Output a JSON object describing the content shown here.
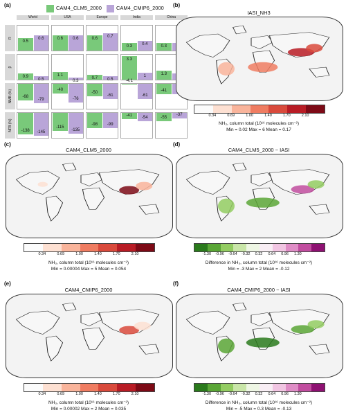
{
  "panels": {
    "a": {
      "label": "(a)"
    },
    "b": {
      "label": "(b)",
      "title": "IASI_NH3",
      "cb_label": "NH₃, column total (10¹⁶ molecules cm⁻²)",
      "stats": "Min = 0.02   Max = 6   Mean = 0.17"
    },
    "c": {
      "label": "(c)",
      "title": "CAM4_CLM5_2000",
      "cb_label": "NH₃, column total (10¹⁶ molecules cm⁻²)",
      "stats": "Min = 0.00004   Max = 5   Mean = 0.054"
    },
    "d": {
      "label": "(d)",
      "title": "CAM4_CLM5_2000 − IASI",
      "cb_label": "Difference in NH₃, column total (10¹⁶ molecules cm⁻²)",
      "stats": "Min = -3   Max = 2   Mean = -0.12"
    },
    "e": {
      "label": "(e)",
      "title": "CAM4_CMIP6_2000",
      "cb_label": "NH₃, column total (10¹⁶ molecules cm⁻²)",
      "stats": "Min = 0.00002   Max = 2   Mean = 0.035"
    },
    "f": {
      "label": "(f)",
      "title": "CAM4_CMIP6_2000 − IASI",
      "cb_label": "Difference in NH₃, column total (10¹⁶ molecules cm⁻²)",
      "stats": "Min = -5   Max = 0.3   Mean = -0.13"
    }
  },
  "colorbars": {
    "seq_ticks": [
      "0.34",
      "0.69",
      "1.00",
      "1.40",
      "1.70",
      "2.10"
    ],
    "seq_colors": [
      "#fbfbfb",
      "#fde0d2",
      "#f9b49b",
      "#ef7c61",
      "#d94a3c",
      "#b81c25",
      "#7d0a16"
    ],
    "div_ticks": [
      "-1.30",
      "-0.96",
      "-0.64",
      "-0.32",
      "0.32",
      "0.64",
      "0.96",
      "1.30"
    ],
    "div_colors": [
      "#2a7a1c",
      "#5aa636",
      "#93cc62",
      "#c9e6a8",
      "#eef6e4",
      "#f8eef4",
      "#f1c5e2",
      "#df8dc6",
      "#c14d9f",
      "#8e1172"
    ]
  },
  "chart_data": {
    "type": "bar",
    "legend": [
      "CAM4_CLM5_2000",
      "CAM4_CMIP6_2000"
    ],
    "colors": {
      "CAM4_CLM5_2000": "#79c97a",
      "CAM4_CMIP6_2000": "#b9a5d8"
    },
    "regions": [
      "World",
      "USA",
      "Europe",
      "India",
      "China"
    ],
    "metrics": [
      "R",
      "β",
      "NMB (%)",
      "NFB (%)"
    ],
    "values": {
      "R": {
        "CAM4_CLM5_2000": [
          0.5,
          0.6,
          0.6,
          0.3,
          0.3
        ],
        "CAM4_CMIP6_2000": [
          0.6,
          0.6,
          0.7,
          0.4,
          0.3
        ]
      },
      "β": {
        "CAM4_CLM5_2000": [
          0.9,
          1.1,
          0.7,
          3.3,
          1.3
        ],
        "CAM4_CMIP6_2000": [
          0.5,
          0.3,
          0.5,
          1,
          0.9
        ]
      },
      "NMB (%)": {
        "CAM4_CLM5_2000": [
          -68,
          -40,
          -50,
          -4.1,
          -41
        ],
        "CAM4_CMIP6_2000": [
          -79,
          -76,
          -61,
          -61,
          -41
        ]
      },
      "NFB (%)": {
        "CAM4_CLM5_2000": [
          -138,
          -115,
          -98,
          -41,
          -55
        ],
        "CAM4_CMIP6_2000": [
          -145,
          -135,
          -99,
          -54,
          -37
        ]
      }
    },
    "ranges": {
      "R": [
        0,
        1
      ],
      "β": [
        0,
        3.5
      ],
      "NMB (%)": [
        -100,
        0
      ],
      "NFB (%)": [
        -160,
        0
      ]
    }
  }
}
